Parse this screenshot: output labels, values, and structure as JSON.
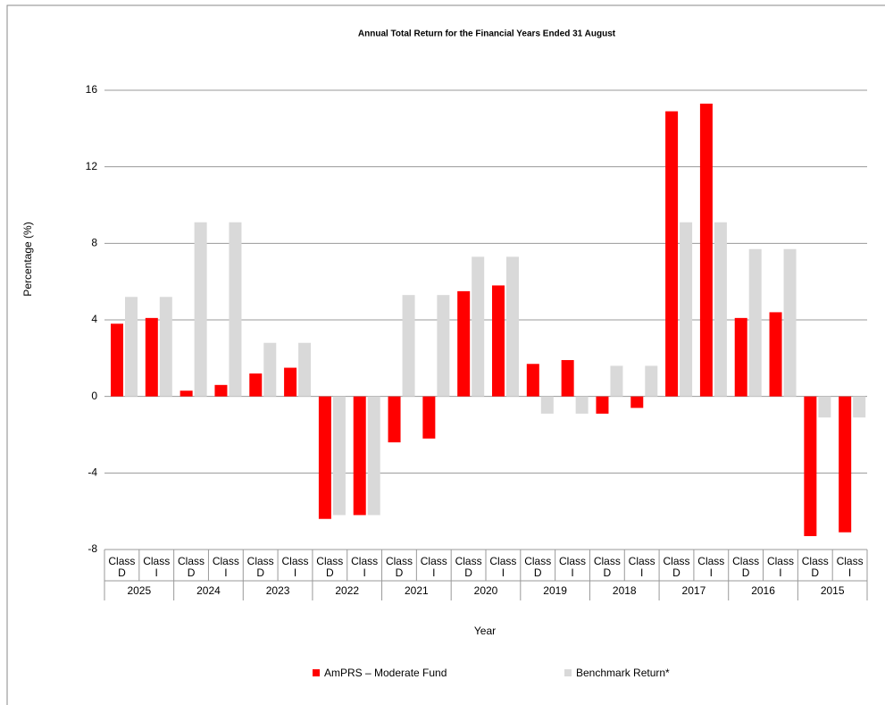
{
  "chart_data": {
    "type": "bar",
    "title": "Annual Total Return for the Financial Years Ended 31 August",
    "categories": [
      "Class D",
      "Class I",
      "Class D",
      "Class I",
      "Class D",
      "Class I",
      "Class D",
      "Class I",
      "Class D",
      "Class I",
      "Class D",
      "Class I",
      "Class D",
      "Class I",
      "Class D",
      "Class I",
      "Class D",
      "Class I",
      "Class D",
      "Class I",
      "Class D",
      "Class I"
    ],
    "groups": [
      "2025",
      "2024",
      "2023",
      "2022",
      "2021",
      "2020",
      "2019",
      "2018",
      "2017",
      "2016",
      "2015"
    ],
    "series": [
      {
        "name": "AmPRS – Moderate Fund",
        "color": "#ff0000",
        "values": [
          3.8,
          4.1,
          0.3,
          0.6,
          1.2,
          1.5,
          -6.4,
          -6.2,
          -2.4,
          -2.2,
          5.5,
          5.8,
          1.7,
          1.9,
          -0.9,
          -0.6,
          14.9,
          15.3,
          4.1,
          4.4,
          -7.3,
          -7.1
        ]
      },
      {
        "name": "Benchmark Return*",
        "color": "#d9d9d9",
        "values": [
          5.2,
          5.2,
          9.1,
          9.1,
          2.8,
          2.8,
          -6.2,
          -6.2,
          5.3,
          5.3,
          7.3,
          7.3,
          -0.9,
          -0.9,
          1.6,
          1.6,
          9.1,
          9.1,
          7.7,
          7.7,
          -1.1,
          -1.1
        ]
      }
    ],
    "x_label": "Year",
    "y_label": "Percentage (%)",
    "ylim": [
      -8,
      16
    ],
    "yticks": [
      -8,
      -4,
      0,
      4,
      8,
      12,
      16
    ],
    "grid": true
  }
}
